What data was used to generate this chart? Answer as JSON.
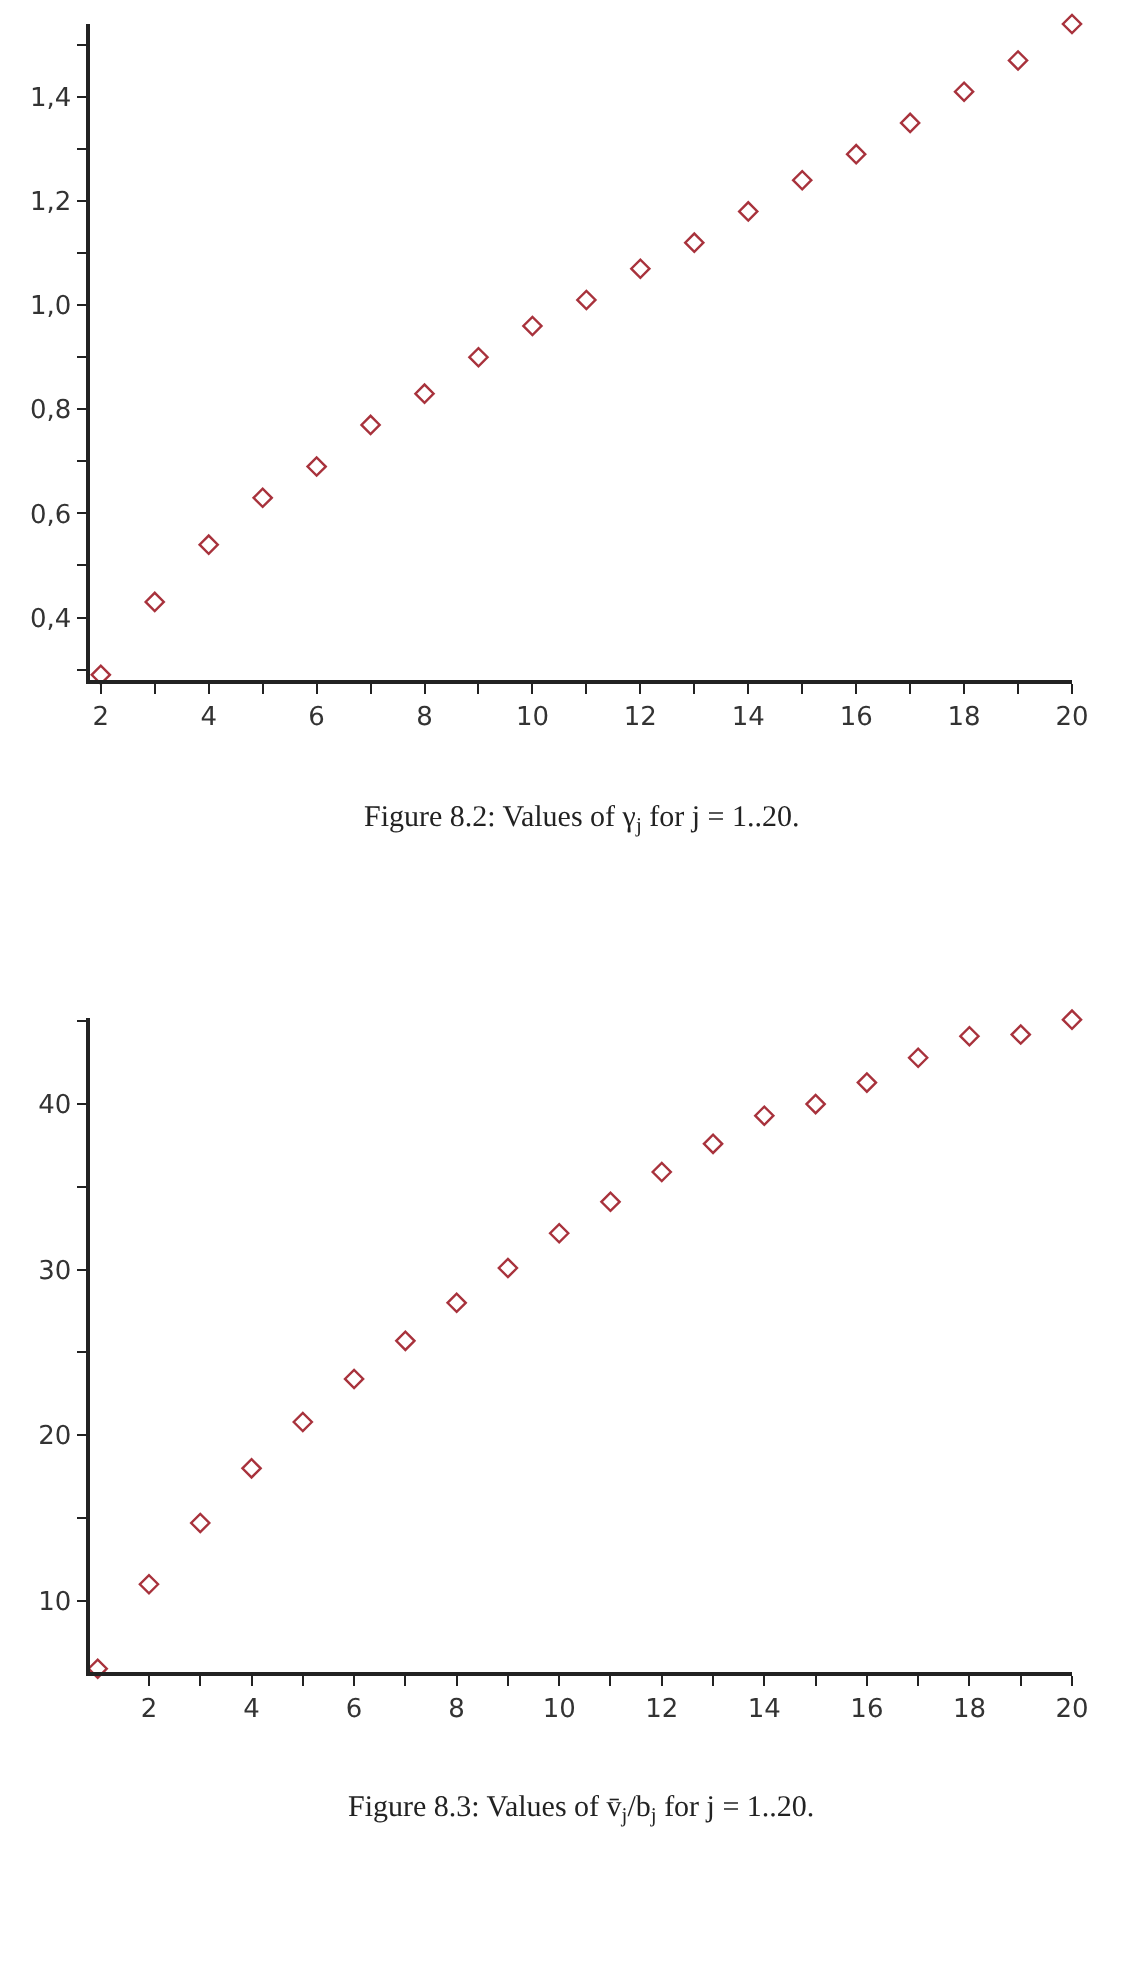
{
  "chart_data": [
    {
      "type": "scatter",
      "x": [
        2,
        3,
        4,
        5,
        6,
        7,
        8,
        9,
        10,
        11,
        12,
        13,
        14,
        15,
        16,
        17,
        18,
        19,
        20
      ],
      "values": [
        0.29,
        0.43,
        0.54,
        0.63,
        0.69,
        0.77,
        0.83,
        0.9,
        0.96,
        1.01,
        1.07,
        1.12,
        1.18,
        1.24,
        1.29,
        1.35,
        1.41,
        1.47,
        1.54
      ],
      "color": "#a8323c",
      "marker": "diamond",
      "xlim": [
        1.8,
        20
      ],
      "ylim": [
        0.28,
        1.54
      ],
      "xticks": [
        2,
        {
          "value": 3,
          "label": null
        },
        4,
        {
          "value": 5,
          "label": null
        },
        6,
        {
          "value": 7,
          "label": null
        },
        8,
        {
          "value": 9,
          "label": null
        },
        10,
        {
          "value": 11,
          "label": null
        },
        12,
        {
          "value": 13,
          "label": null
        },
        14,
        {
          "value": 15,
          "label": null
        },
        16,
        {
          "value": 17,
          "label": null
        },
        18,
        {
          "value": 19,
          "label": null
        },
        20
      ],
      "yticks": [
        {
          "value": 0.3,
          "label": null
        },
        {
          "value": 0.4,
          "label": "0,4"
        },
        {
          "value": 0.5,
          "label": null
        },
        {
          "value": 0.6,
          "label": "0,6"
        },
        {
          "value": 0.7,
          "label": null
        },
        {
          "value": 0.8,
          "label": "0,8"
        },
        {
          "value": 0.9,
          "label": null
        },
        {
          "value": 1.0,
          "label": "1,0"
        },
        {
          "value": 1.1,
          "label": null
        },
        {
          "value": 1.2,
          "label": "1,2"
        },
        {
          "value": 1.3,
          "label": null
        },
        {
          "value": 1.4,
          "label": "1,4"
        },
        {
          "value": 1.5,
          "label": null
        }
      ],
      "annotations": [
        "Figure 8.2: Values of γ$_{j}$ for j = 1..20."
      ]
    },
    {
      "type": "scatter",
      "x": [
        1,
        2,
        3,
        4,
        5,
        6,
        7,
        8,
        9,
        10,
        11,
        12,
        13,
        14,
        15,
        16,
        17,
        18,
        19,
        20
      ],
      "values": [
        5.9,
        11.0,
        14.7,
        18.0,
        20.8,
        23.4,
        25.7,
        28.0,
        30.1,
        32.2,
        34.1,
        35.9,
        37.6,
        39.3,
        40.0,
        41.3,
        42.8,
        44.1,
        44.2,
        45.1
      ],
      "color": "#a8323c",
      "marker": "diamond",
      "xlim": [
        0.85,
        20
      ],
      "ylim": [
        5.7,
        45.2
      ],
      "xticks": [
        2,
        {
          "value": 3,
          "label": null
        },
        4,
        {
          "value": 5,
          "label": null
        },
        6,
        {
          "value": 7,
          "label": null
        },
        8,
        {
          "value": 9,
          "label": null
        },
        10,
        {
          "value": 11,
          "label": null
        },
        12,
        {
          "value": 13,
          "label": null
        },
        14,
        {
          "value": 15,
          "label": null
        },
        16,
        {
          "value": 17,
          "label": null
        },
        18,
        {
          "value": 19,
          "label": null
        },
        20
      ],
      "yticks": [
        10,
        {
          "value": 15,
          "label": null
        },
        20,
        {
          "value": 25,
          "label": null
        },
        30,
        {
          "value": 35,
          "label": null
        },
        40,
        {
          "value": 45,
          "label": null
        }
      ],
      "annotations": [
        "Figure 8.3: Values of v̄$_{j}$/b$_{j}$ for j = 1..20."
      ]
    }
  ]
}
